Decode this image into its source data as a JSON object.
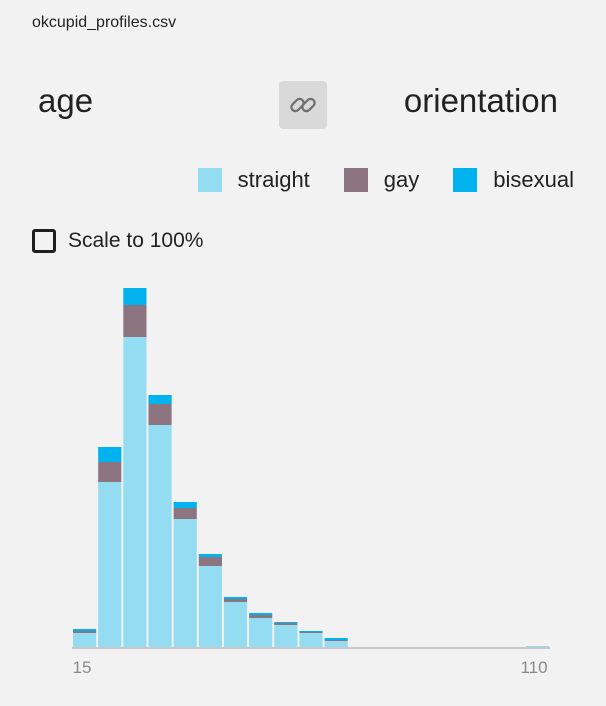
{
  "file": {
    "name": "okcupid_profiles.csv"
  },
  "header": {
    "left_attribute": "age",
    "right_attribute": "orientation",
    "link_icon": "link-icon"
  },
  "legend": [
    {
      "label": "straight",
      "color": "#94dcf1"
    },
    {
      "label": "gay",
      "color": "#8c7480"
    },
    {
      "label": "bisexual",
      "color": "#00b3ee"
    }
  ],
  "scale_toggle": {
    "label": "Scale to 100%",
    "checked": false
  },
  "chart_data": {
    "type": "bar",
    "stacked": true,
    "x_tick_labels": [
      "15",
      "110"
    ],
    "xlim": [
      15,
      110
    ],
    "bin_width": 5,
    "bins": [
      15,
      20,
      25,
      30,
      35,
      40,
      45,
      50,
      55,
      60,
      65,
      70,
      75,
      80,
      85,
      90,
      95,
      100,
      105
    ],
    "series": [
      {
        "name": "straight",
        "values": [
          14,
          165,
          310,
          222,
          128,
          81,
          45,
          29,
          22,
          14,
          6,
          0,
          0,
          0,
          0,
          0,
          0,
          0,
          1
        ]
      },
      {
        "name": "gay",
        "values": [
          2,
          20,
          32,
          21,
          11,
          9,
          3,
          3,
          2,
          1,
          1,
          0,
          0,
          0,
          0,
          0,
          0,
          0,
          0
        ]
      },
      {
        "name": "bisexual",
        "values": [
          2,
          15,
          17,
          9,
          6,
          3,
          2,
          2,
          1,
          1,
          2,
          0,
          0,
          0,
          0,
          0,
          0,
          0,
          0
        ]
      }
    ],
    "ylim": [
      0,
      360
    ],
    "grid": false
  }
}
